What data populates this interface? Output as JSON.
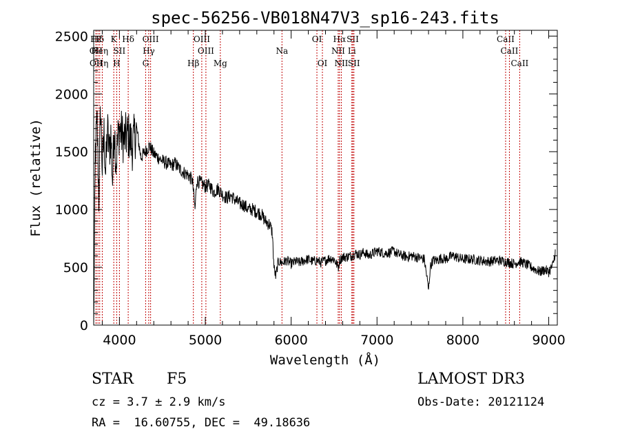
{
  "chart_data": {
    "type": "line",
    "title": "spec-56256-VB018N47V3_sp16-243.fits",
    "xlabel": "Wavelength (Å)",
    "ylabel": "Flux (relative)",
    "xlim": [
      3700,
      9100
    ],
    "ylim": [
      0,
      2550
    ],
    "x_ticks": [
      4000,
      5000,
      6000,
      7000,
      8000,
      9000
    ],
    "y_ticks": [
      0,
      500,
      1000,
      1500,
      2000,
      2500
    ],
    "x_tick_labels": [
      "4000",
      "5000",
      "6000",
      "7000",
      "8000",
      "9000"
    ],
    "y_tick_labels": [
      "0",
      "500",
      "1000",
      "1500",
      "2000",
      "2500"
    ],
    "series": [
      {
        "name": "spectrum",
        "x": [
          3700,
          3720,
          3740,
          3760,
          3780,
          3800,
          3820,
          3840,
          3860,
          3880,
          3900,
          3920,
          3940,
          3960,
          3980,
          4000,
          4050,
          4100,
          4150,
          4200,
          4250,
          4300,
          4350,
          4400,
          4450,
          4500,
          4550,
          4600,
          4650,
          4700,
          4750,
          4800,
          4850,
          4880,
          4900,
          4950,
          5000,
          5050,
          5100,
          5150,
          5200,
          5250,
          5300,
          5350,
          5400,
          5450,
          5500,
          5550,
          5600,
          5650,
          5700,
          5750,
          5780,
          5800,
          5820,
          5850,
          5900,
          5950,
          6000,
          6050,
          6100,
          6150,
          6200,
          6250,
          6300,
          6350,
          6400,
          6450,
          6500,
          6550,
          6563,
          6600,
          6650,
          6700,
          6750,
          6800,
          6850,
          6900,
          6950,
          7000,
          7050,
          7100,
          7150,
          7200,
          7250,
          7300,
          7350,
          7400,
          7450,
          7500,
          7550,
          7580,
          7600,
          7620,
          7650,
          7700,
          7750,
          7800,
          7850,
          7900,
          7950,
          8000,
          8100,
          8200,
          8300,
          8400,
          8500,
          8550,
          8600,
          8650,
          8700,
          8750,
          8800,
          8850,
          8900,
          8950,
          9000,
          9050,
          9080
        ],
        "values": [
          0,
          1500,
          1750,
          1100,
          1900,
          1350,
          1650,
          1300,
          1700,
          1500,
          1650,
          1250,
          1750,
          1400,
          1600,
          1700,
          1600,
          1650,
          1550,
          1700,
          1450,
          1500,
          1550,
          1480,
          1450,
          1420,
          1400,
          1380,
          1400,
          1350,
          1320,
          1300,
          1250,
          1000,
          1250,
          1230,
          1200,
          1210,
          1150,
          1180,
          1130,
          1100,
          1120,
          1080,
          1050,
          1040,
          1000,
          1000,
          980,
          960,
          900,
          870,
          800,
          500,
          420,
          550,
          540,
          560,
          530,
          550,
          540,
          560,
          570,
          550,
          560,
          540,
          560,
          580,
          570,
          500,
          560,
          590,
          590,
          600,
          620,
          610,
          630,
          600,
          620,
          640,
          630,
          620,
          630,
          640,
          610,
          600,
          590,
          600,
          590,
          580,
          570,
          420,
          300,
          500,
          560,
          560,
          580,
          570,
          590,
          600,
          580,
          570,
          570,
          560,
          550,
          560,
          550,
          540,
          530,
          550,
          540,
          520,
          500,
          480,
          460,
          480,
          460,
          520,
          650
        ]
      }
    ],
    "line_markers": [
      {
        "label": "Hε",
        "wavelength": 3728,
        "row": 0
      },
      {
        "label": "OII",
        "wavelength": 3727,
        "row": 1
      },
      {
        "label": "OII",
        "wavelength": 3729,
        "row": 2
      },
      {
        "label": "Hδ",
        "wavelength": 3750,
        "row": 0
      },
      {
        "label": "Heη",
        "wavelength": 3770,
        "row": 1
      },
      {
        "label": "Hη",
        "wavelength": 3800,
        "row": 2
      },
      {
        "label": "K",
        "wavelength": 3934,
        "row": 0
      },
      {
        "label": "H",
        "wavelength": 3968,
        "row": 2
      },
      {
        "label": "SII",
        "wavelength": 4000,
        "row": 1
      },
      {
        "label": "Hδ",
        "wavelength": 4102,
        "row": 0
      },
      {
        "label": "OIII",
        "wavelength": 4363,
        "row": 0
      },
      {
        "label": "Hγ",
        "wavelength": 4341,
        "row": 1
      },
      {
        "label": "G",
        "wavelength": 4305,
        "row": 2
      },
      {
        "label": "Hβ",
        "wavelength": 4861,
        "row": 2
      },
      {
        "label": "OIII",
        "wavelength": 4959,
        "row": 0
      },
      {
        "label": "OIII",
        "wavelength": 5007,
        "row": 1
      },
      {
        "label": "Mg",
        "wavelength": 5175,
        "row": 2
      },
      {
        "label": "Na",
        "wavelength": 5893,
        "row": 1
      },
      {
        "label": "OI",
        "wavelength": 6300,
        "row": 0
      },
      {
        "label": "OI",
        "wavelength": 6364,
        "row": 2
      },
      {
        "label": "Hα",
        "wavelength": 6563,
        "row": 0
      },
      {
        "label": "NII",
        "wavelength": 6548,
        "row": 1
      },
      {
        "label": "NII",
        "wavelength": 6584,
        "row": 2
      },
      {
        "label": "SII",
        "wavelength": 6717,
        "row": 0
      },
      {
        "label": "Li",
        "wavelength": 6707,
        "row": 1
      },
      {
        "label": "SII",
        "wavelength": 6731,
        "row": 2
      },
      {
        "label": "CaII",
        "wavelength": 8498,
        "row": 0
      },
      {
        "label": "CaII",
        "wavelength": 8542,
        "row": 1
      },
      {
        "label": "CaII",
        "wavelength": 8662,
        "row": 2
      }
    ],
    "marker_color": "#c00000",
    "line_color": "#000000"
  },
  "info": {
    "object_type": "STAR",
    "subclass": "F5",
    "survey": "LAMOST DR3",
    "redshift": "cz = 3.7 ± 2.9 km/s",
    "obs_date": "Obs-Date: 20121124",
    "coordinates": "RA =  16.60755, DEC =  49.18636"
  }
}
